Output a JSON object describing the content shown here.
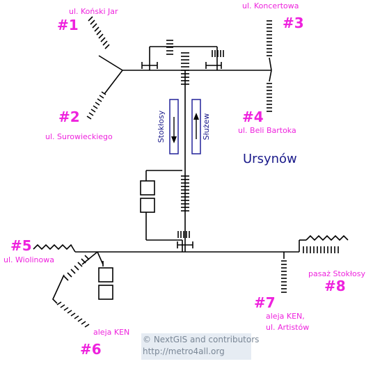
{
  "station": {
    "name": "Ursynów"
  },
  "platform": {
    "left_direction": "Stokłosy",
    "right_direction": "Służew"
  },
  "exits": [
    {
      "number": "#1",
      "label": "ul. Koński  Jar"
    },
    {
      "number": "#2",
      "label": "ul. Surowieckiego"
    },
    {
      "number": "#3",
      "label": "ul. Koncertowa"
    },
    {
      "number": "#4",
      "label": "ul. Beli Bartoka"
    },
    {
      "number": "#5",
      "label": "ul. Wiolinowa"
    },
    {
      "number": "#6",
      "label": "aleja KEN"
    },
    {
      "number": "#7",
      "label_lines": [
        "aleja KEN,",
        "ul. Artistów"
      ]
    },
    {
      "number": "#8",
      "label": "pasaż Stokłosy"
    }
  ],
  "attribution": {
    "line1": "© NextGIS and contributors",
    "line2": "http://metro4all.org"
  },
  "colors": {
    "exit": "#ee22dd",
    "station": "#1a1a8a",
    "line": "#000000"
  }
}
